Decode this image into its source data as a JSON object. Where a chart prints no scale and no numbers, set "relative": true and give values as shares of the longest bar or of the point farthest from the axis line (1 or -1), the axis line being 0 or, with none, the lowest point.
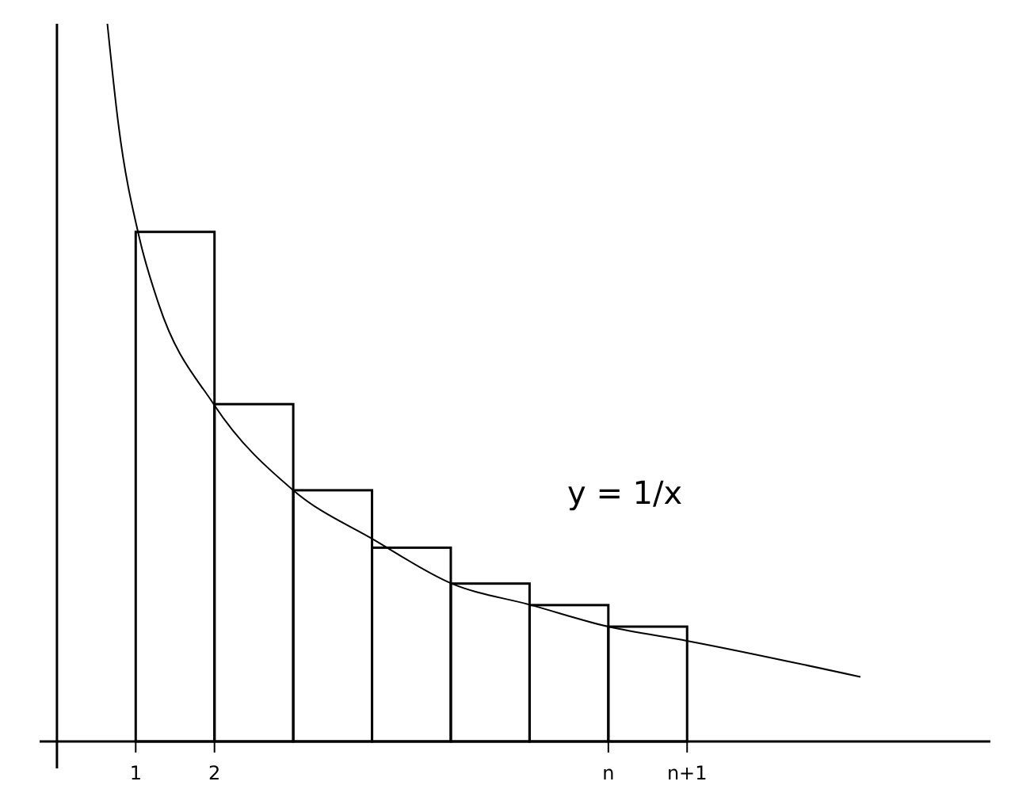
{
  "chart_data": {
    "type": "bar",
    "relative": true,
    "x": [
      1.5,
      2.5,
      3.5,
      4.5,
      5.5,
      6.5,
      7.5
    ],
    "xlim": [
      -0.22,
      11.85
    ],
    "xticks": [
      {
        "value": 1,
        "label": "1"
      },
      {
        "value": 2,
        "label": "2"
      },
      {
        "value": 7,
        "label": "n"
      },
      {
        "value": 8,
        "label": "n+1"
      }
    ],
    "series": [
      {
        "color": "#000000",
        "values": [
          0.71,
          0.47,
          0.35,
          0.27,
          0.22,
          0.19,
          0.16
        ]
      },
      {
        "type": "line",
        "color": "#000000",
        "x": [
          0.64,
          0.78,
          1.05,
          1.29,
          1.99,
          3.0,
          4.04,
          5.01,
          6.02,
          7.0,
          8.01,
          10.2
        ],
        "values": [
          1,
          0.86,
          0.7,
          0.61,
          0.47,
          0.35,
          0.28,
          0.22,
          0.19,
          0.16,
          0.14,
          0.09
        ]
      }
    ],
    "annotations": [
      "y = 1/x"
    ],
    "grid": false
  }
}
